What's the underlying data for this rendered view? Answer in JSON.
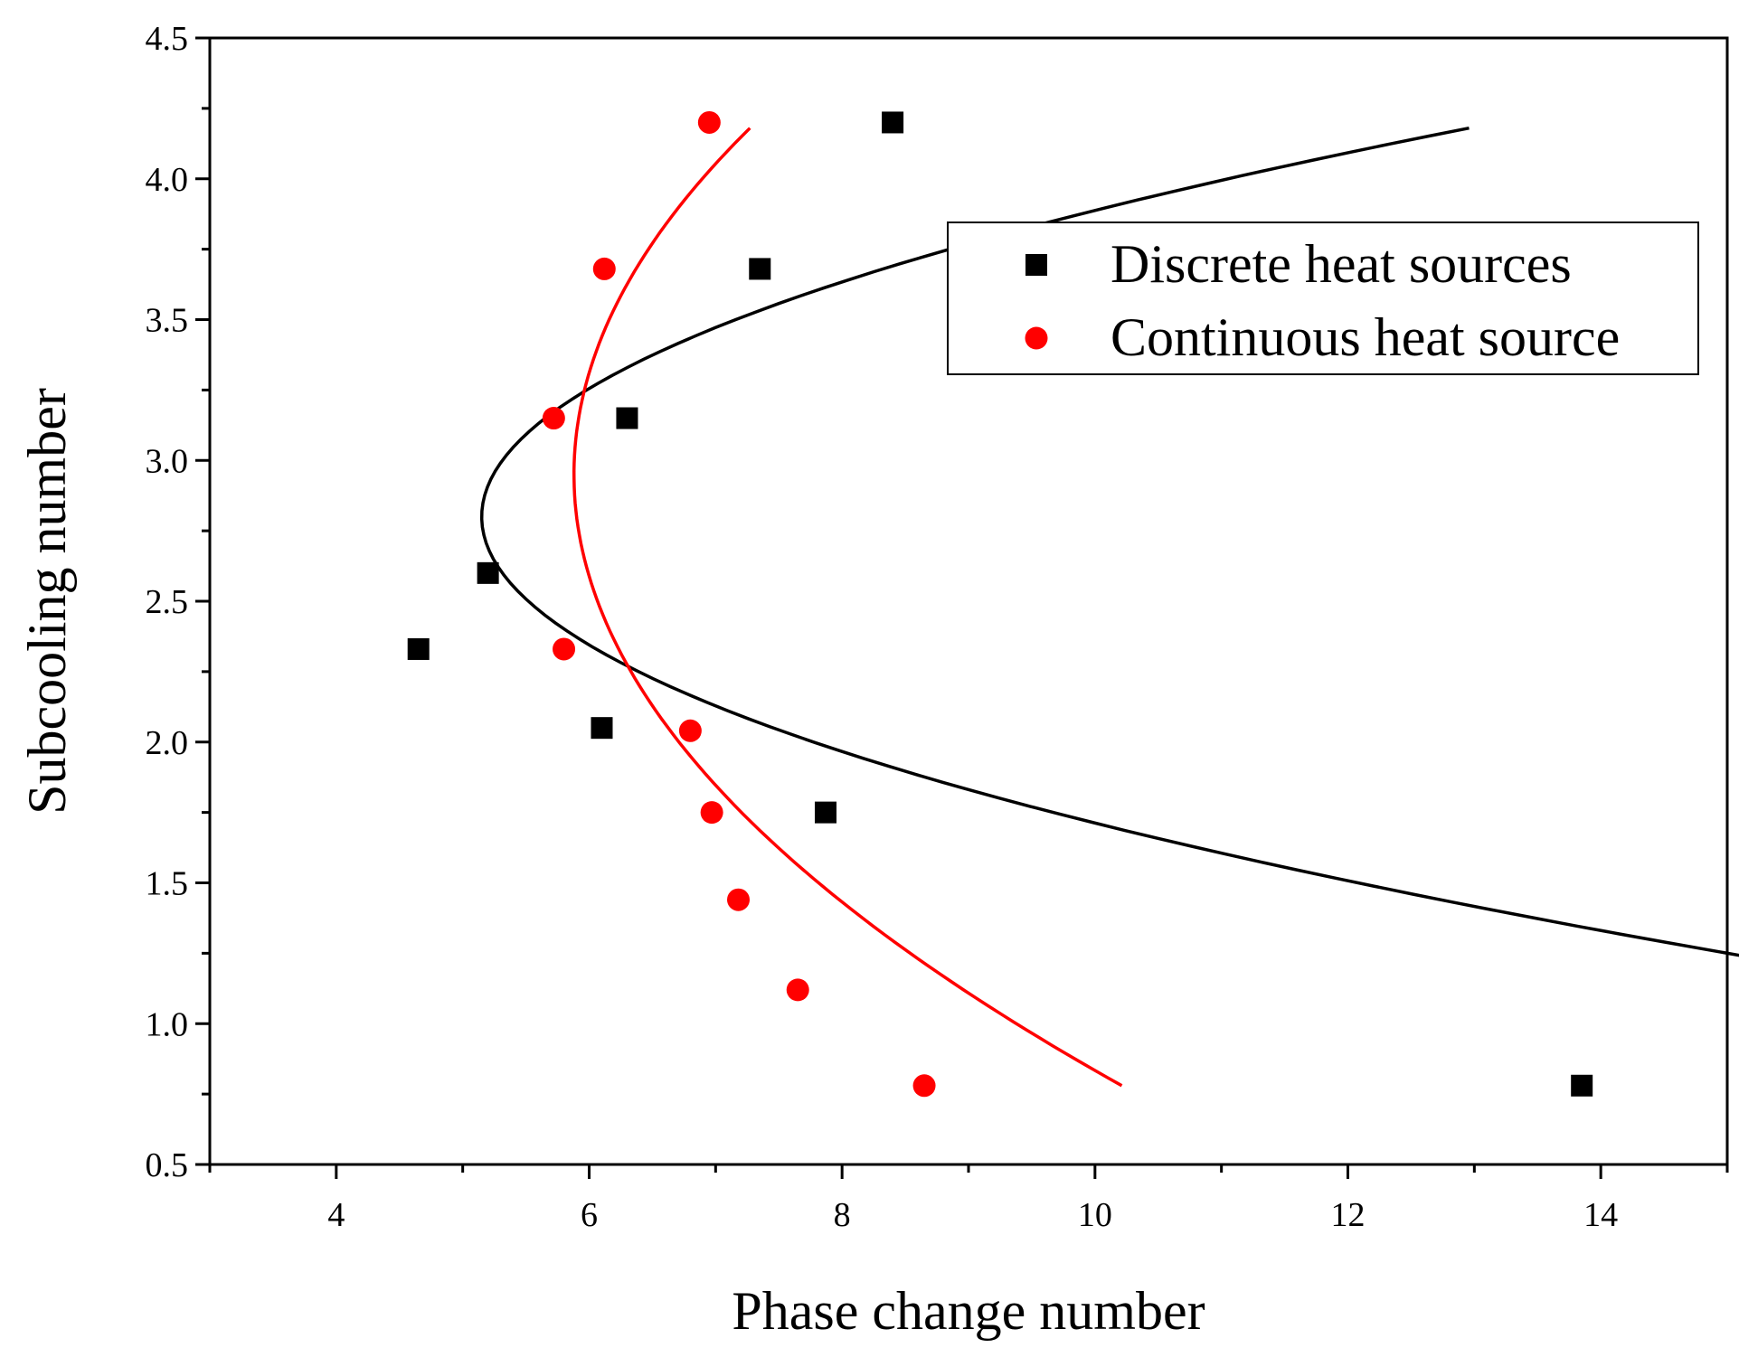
{
  "chart_data": {
    "type": "scatter",
    "title": "",
    "xlabel": "Phase change number",
    "ylabel": "Subcooling number",
    "xlim": [
      3,
      15
    ],
    "ylim": [
      0.5,
      4.5
    ],
    "xticks": [
      4,
      6,
      8,
      10,
      12,
      14
    ],
    "xtick_labels": [
      "4",
      "6",
      "8",
      "10",
      "12",
      "14"
    ],
    "yticks": [
      0.5,
      1.0,
      1.5,
      2.0,
      2.5,
      3.0,
      3.5,
      4.0,
      4.5
    ],
    "ytick_labels": [
      "0.5",
      "1.0",
      "1.5",
      "2.0",
      "2.5",
      "3.0",
      "3.5",
      "4.0",
      "4.5"
    ],
    "grid": false,
    "legend_position": "top-right",
    "series": [
      {
        "name": "Discrete heat sources",
        "marker": "square",
        "color": "#000000",
        "points": [
          {
            "x": 4.65,
            "y": 2.33
          },
          {
            "x": 5.2,
            "y": 2.6
          },
          {
            "x": 6.1,
            "y": 2.05
          },
          {
            "x": 6.3,
            "y": 3.15
          },
          {
            "x": 7.35,
            "y": 3.68
          },
          {
            "x": 7.87,
            "y": 1.75
          },
          {
            "x": 8.4,
            "y": 4.2
          },
          {
            "x": 13.85,
            "y": 0.78
          }
        ],
        "fit": {
          "color": "#000000",
          "y_range": [
            0.78,
            4.18
          ],
          "vertex": {
            "x": 5.15,
            "y": 2.8
          },
          "curvature": 4.1
        }
      },
      {
        "name": "Continuous heat source",
        "marker": "circle",
        "color": "#ff0000",
        "points": [
          {
            "x": 5.72,
            "y": 3.15
          },
          {
            "x": 5.8,
            "y": 2.33
          },
          {
            "x": 6.12,
            "y": 3.68
          },
          {
            "x": 6.8,
            "y": 2.04
          },
          {
            "x": 6.95,
            "y": 4.2
          },
          {
            "x": 6.97,
            "y": 1.75
          },
          {
            "x": 7.18,
            "y": 1.44
          },
          {
            "x": 7.65,
            "y": 1.12
          },
          {
            "x": 8.65,
            "y": 0.78
          }
        ],
        "fit": {
          "color": "#ff0000",
          "y_range": [
            0.78,
            4.18
          ],
          "vertex": {
            "x": 5.88,
            "y": 2.95
          },
          "curvature": 0.92
        }
      }
    ]
  }
}
